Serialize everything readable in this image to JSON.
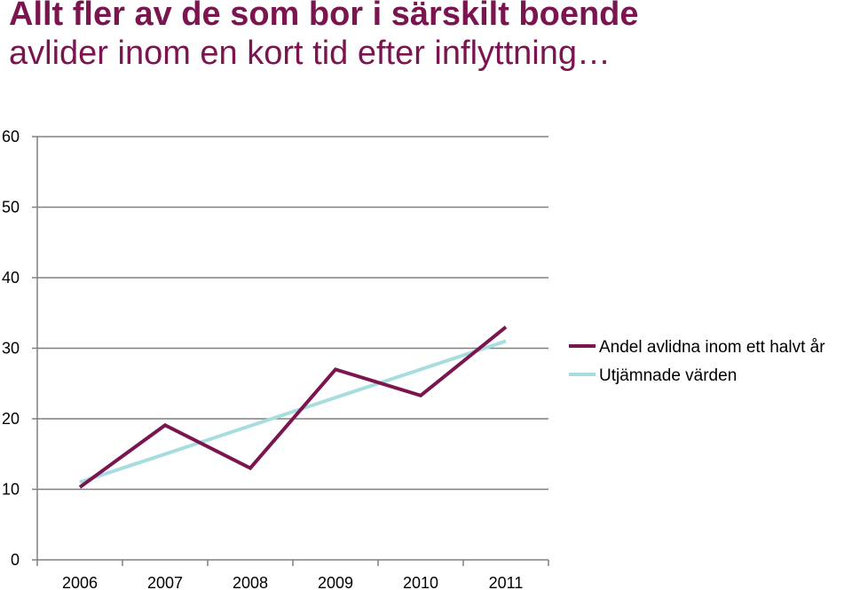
{
  "title": {
    "line1": "Allt fler av de som bor i särskilt boende",
    "line2": "avlider inom en kort tid efter inflyttning…"
  },
  "colors": {
    "title": "#7a1550",
    "series1": "#7a1550",
    "series2": "#a8dde0",
    "grid": "#808080"
  },
  "chart_data": {
    "type": "line",
    "title": "Allt fler av de som bor i särskilt boende avlider inom en kort tid efter inflyttning…",
    "xlabel": "",
    "ylabel": "",
    "categories": [
      "2006",
      "2007",
      "2008",
      "2009",
      "2010",
      "2011"
    ],
    "ylim": [
      0,
      60
    ],
    "yticks": [
      0,
      10,
      20,
      30,
      40,
      50,
      60
    ],
    "grid": true,
    "legend_position": "right",
    "series": [
      {
        "name": "Andel avlidna inom ett halvt år",
        "values": [
          10.3,
          19.1,
          13.0,
          27.0,
          23.3,
          33.0
        ],
        "color": "#7a1550"
      },
      {
        "name": "Utjämnade värden",
        "values": [
          11.0,
          15.0,
          19.0,
          23.0,
          27.0,
          31.0
        ],
        "color": "#a8dde0"
      }
    ]
  }
}
